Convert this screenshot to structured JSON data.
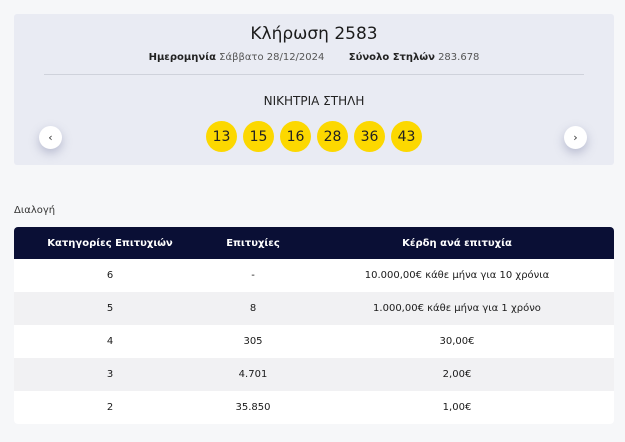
{
  "draw": {
    "title": "Κλήρωση 2583",
    "date_label": "Ημερομηνία",
    "date_value": "Σάββατο 28/12/2024",
    "total_label": "Σύνολο Στηλών",
    "total_value": "283.678",
    "winning_title": "ΝΙΚΗΤΡΙΑ ΣΤΗΛΗ",
    "numbers": [
      "13",
      "15",
      "16",
      "28",
      "36",
      "43"
    ],
    "ball_color": "#fcd800"
  },
  "nav": {
    "prev_icon": "chevron-left-icon",
    "prev": "‹",
    "next_icon": "chevron-right-icon",
    "next": "›"
  },
  "section_label": "Διαλογή",
  "table": {
    "headers": [
      "Κατηγορίες Επιτυχιών",
      "Επιτυχίες",
      "Κέρδη ανά επιτυχία"
    ],
    "header_color": "#0a0f35",
    "rows": [
      [
        "6",
        "-",
        "10.000,00€ κάθε μήνα για 10 χρόνια"
      ],
      [
        "5",
        "8",
        "1.000,00€ κάθε μήνα για 1 χρόνο"
      ],
      [
        "4",
        "305",
        "30,00€"
      ],
      [
        "3",
        "4.701",
        "2,00€"
      ],
      [
        "2",
        "35.850",
        "1,00€"
      ]
    ]
  }
}
